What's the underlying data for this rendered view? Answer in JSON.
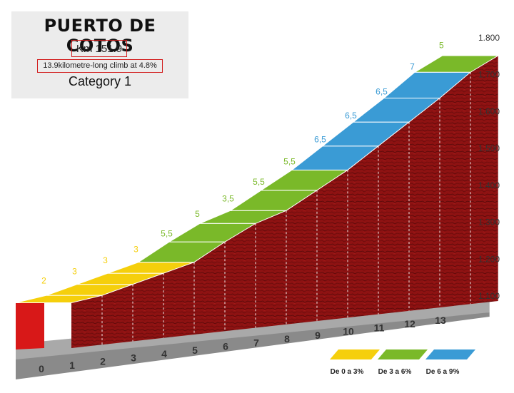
{
  "header": {
    "title": "PUERTO DE COTOS",
    "km": "Km 151.9",
    "description": "13.9kilometre-long climb at 4.8%",
    "category": "Category 1"
  },
  "chart_data": {
    "type": "area",
    "title": "PUERTO DE COTOS",
    "xlabel": "",
    "ylabel": "",
    "x_ticks": [
      "0",
      "1",
      "2",
      "3",
      "4",
      "5",
      "6",
      "7",
      "8",
      "9",
      "10",
      "11",
      "12",
      "13"
    ],
    "y_ticks": [
      "1.100",
      "1.200",
      "1.300",
      "1.400",
      "1.500",
      "1.600",
      "1.700",
      "1.800"
    ],
    "ylim": [
      1100,
      1800
    ],
    "xlim": [
      0,
      13.9
    ],
    "segments": [
      {
        "km_start": 0,
        "km_end": 1,
        "gradient": 2,
        "label": "2"
      },
      {
        "km_start": 1,
        "km_end": 2,
        "gradient": 3,
        "label": "3"
      },
      {
        "km_start": 2,
        "km_end": 3,
        "gradient": 3,
        "label": "3"
      },
      {
        "km_start": 3,
        "km_end": 4,
        "gradient": 3,
        "label": "3"
      },
      {
        "km_start": 4,
        "km_end": 5,
        "gradient": 5.5,
        "label": "5,5"
      },
      {
        "km_start": 5,
        "km_end": 6,
        "gradient": 5,
        "label": "5"
      },
      {
        "km_start": 6,
        "km_end": 7,
        "gradient": 3.5,
        "label": "3,5"
      },
      {
        "km_start": 7,
        "km_end": 8,
        "gradient": 5.5,
        "label": "5,5"
      },
      {
        "km_start": 8,
        "km_end": 9,
        "gradient": 5.5,
        "label": "5,5"
      },
      {
        "km_start": 9,
        "km_end": 10,
        "gradient": 6.5,
        "label": "6,5"
      },
      {
        "km_start": 10,
        "km_end": 11,
        "gradient": 6.5,
        "label": "6,5"
      },
      {
        "km_start": 11,
        "km_end": 12,
        "gradient": 6.5,
        "label": "6,5"
      },
      {
        "km_start": 12,
        "km_end": 13,
        "gradient": 7,
        "label": "7"
      },
      {
        "km_start": 13,
        "km_end": 13.9,
        "gradient": 5,
        "label": "5"
      }
    ],
    "legend": [
      {
        "label": "De 0 a 3%",
        "color": "#f5cf0c"
      },
      {
        "label": "De 3 a 6%",
        "color": "#7ab929"
      },
      {
        "label": "De 6 a 9%",
        "color": "#3a9bd5"
      }
    ],
    "legend_position": "bottom-right",
    "colors": {
      "easy": "#f5cf0c",
      "medium": "#7ab929",
      "hard": "#3a9bd5",
      "profile_fill": "#8e1212",
      "profile_dark": "#5a0a0a",
      "start_face": "#d81818",
      "base": "#a9a9a9",
      "axis_text": "#333333"
    }
  }
}
